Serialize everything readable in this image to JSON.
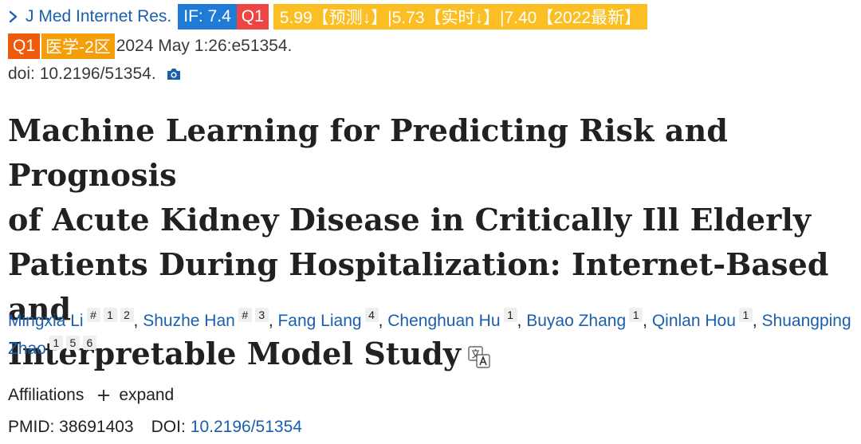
{
  "journal": {
    "name": "J Med Internet Res."
  },
  "badges": {
    "impact_factor": "IF: 7.4",
    "quartile_1": "Q1",
    "predict_text": "5.99【预测↓】|5.73【实时↓】|7.40【2022最新】",
    "quartile_2": "Q1",
    "field_rank": "医学-2区"
  },
  "citation": {
    "date_volume": "2024 May 1:26:e51354.",
    "doi_line": "doi: 10.2196/51354."
  },
  "title": {
    "line1": "Machine Learning for Predicting Risk and Prognosis",
    "line2": "of Acute Kidney Disease in Critically Ill Elderly",
    "line3": "Patients During Hospitalization: Internet-Based and",
    "line4": "Interpretable Model Study"
  },
  "authors": [
    {
      "name": "Mingxia Li",
      "sups": [
        "#",
        "1",
        "2"
      ]
    },
    {
      "name": "Shuzhe Han",
      "sups": [
        "#",
        "3"
      ]
    },
    {
      "name": "Fang Liang",
      "sups": [
        "4"
      ]
    },
    {
      "name": "Chenghuan Hu",
      "sups": [
        "1"
      ]
    },
    {
      "name": "Buyao Zhang",
      "sups": [
        "1"
      ]
    },
    {
      "name": "Qinlan Hou",
      "sups": [
        "1"
      ]
    },
    {
      "name": "Shuangping Zhao",
      "sups": [
        "1",
        "5",
        "6"
      ]
    }
  ],
  "author_separator": ",",
  "affiliations": {
    "label": "Affiliations",
    "expand_label": "expand"
  },
  "ids": {
    "pmid_label": "PMID: 38691403",
    "doi_label": "DOI:",
    "doi_value": "10.2196/51354"
  },
  "colors": {
    "link": "#1a5fad",
    "if_badge": "#1f7bd6",
    "q1_red": "#ee4444",
    "predict_badge": "#fbbf24",
    "q1_orange": "#ef5b0c",
    "field_badge": "#f59e0b"
  },
  "icons": {
    "journal": "chevron-right-icon",
    "doi": "camera-icon",
    "title": "translate-icon",
    "expand": "plus-icon"
  }
}
